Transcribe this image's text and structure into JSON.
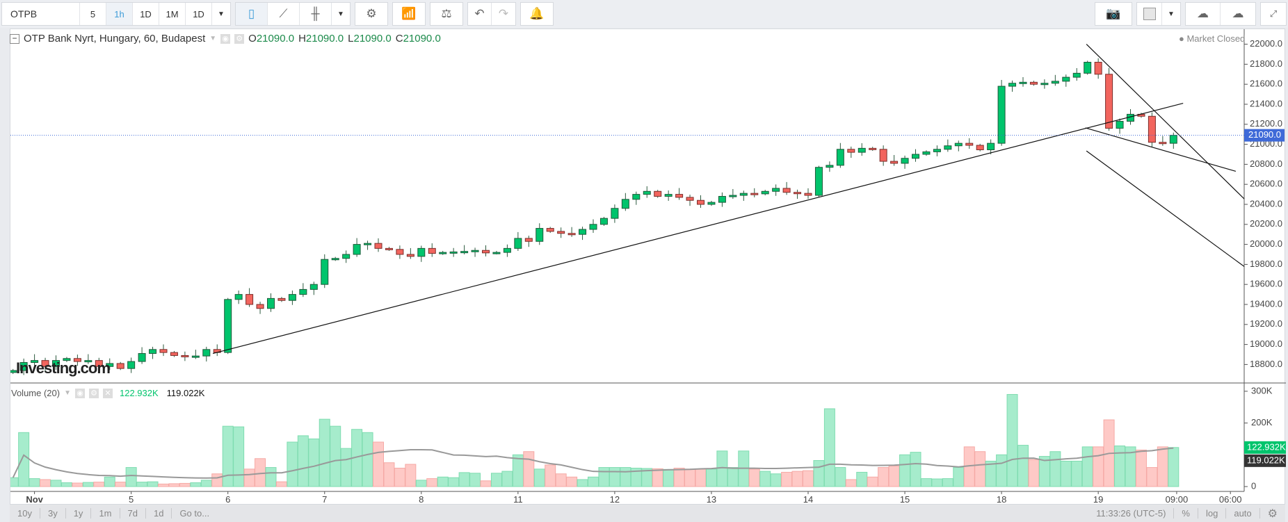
{
  "toolbar": {
    "symbol": "OTPB",
    "intervals": [
      "5",
      "1h",
      "1D",
      "1M",
      "1D"
    ],
    "active_interval": "1h"
  },
  "legend": {
    "title": "OTP Bank Nyrt, Hungary, 60, Budapest",
    "o": "21090.0",
    "h": "21090.0",
    "l": "21090.0",
    "c": "21090.0",
    "market_status": "Market Closed"
  },
  "volume_legend": {
    "label": "Volume (20)",
    "v1": "122.932K",
    "v2": "119.022K"
  },
  "watermark": "Investing.com",
  "bottombar": {
    "ranges": [
      "10y",
      "3y",
      "1y",
      "1m",
      "7d",
      "1d",
      "Go to..."
    ],
    "time": "11:33:26 (UTC-5)",
    "percent": "%",
    "log": "log",
    "auto": "auto"
  },
  "colors": {
    "up": "#00c46c",
    "down": "#f2655e",
    "up_vol": "#a6eccc",
    "down_vol": "#fec9c6",
    "last_price": "#3f6ad8"
  },
  "chart_data": {
    "type": "candlestick",
    "title": "OTP Bank Nyrt, Hungary, 60, Budapest",
    "last_price": 21090,
    "last_price_label": "21090.0",
    "price_ticks": [
      18800,
      19000,
      19200,
      19400,
      19600,
      19800,
      20000,
      20200,
      20400,
      20600,
      20800,
      21000,
      21200,
      21400,
      21600,
      21800,
      22000
    ],
    "volume_ticks": [
      {
        "v": 0,
        "label": "0"
      },
      {
        "v": 200,
        "label": "200K"
      },
      {
        "v": 300,
        "label": "300K"
      }
    ],
    "volume_badges": [
      {
        "v": 122.932,
        "label": "122.932K",
        "color": "#00c46c"
      },
      {
        "v": 119.022,
        "label": "119.022K",
        "color": "#333333"
      }
    ],
    "x_labels": [
      {
        "i": 2,
        "label": "Nov"
      },
      {
        "i": 11,
        "label": "5"
      },
      {
        "i": 20,
        "label": "6"
      },
      {
        "i": 29,
        "label": "7"
      },
      {
        "i": 38,
        "label": "8"
      },
      {
        "i": 47,
        "label": "11"
      },
      {
        "i": 56,
        "label": "12"
      },
      {
        "i": 65,
        "label": "13"
      },
      {
        "i": 74,
        "label": "14"
      },
      {
        "i": 83,
        "label": "15"
      },
      {
        "i": 92,
        "label": "18"
      },
      {
        "i": 101,
        "label": "19"
      },
      {
        "i": 108.3,
        "label": "09:00"
      },
      {
        "i": 113.3,
        "label": "06:00"
      }
    ],
    "closes": [
      18740,
      18820,
      18840,
      18780,
      18840,
      18860,
      18830,
      18840,
      18780,
      18810,
      18760,
      18830,
      18910,
      18950,
      18920,
      18890,
      18880,
      18885,
      18950,
      18920,
      19450,
      19500,
      19400,
      19360,
      19460,
      19440,
      19500,
      19550,
      19600,
      19850,
      19860,
      19900,
      20000,
      20010,
      19960,
      19950,
      19900,
      19880,
      19960,
      19910,
      19920,
      19925,
      19930,
      19940,
      19915,
      19920,
      19960,
      20060,
      20030,
      20160,
      20130,
      20110,
      20100,
      20150,
      20200,
      20260,
      20360,
      20450,
      20500,
      20530,
      20480,
      20500,
      20470,
      20440,
      20400,
      20420,
      20480,
      20490,
      20510,
      20505,
      20530,
      20560,
      20520,
      20510,
      20490,
      20770,
      20790,
      20950,
      20920,
      20960,
      20950,
      20830,
      20810,
      20860,
      20900,
      20925,
      20950,
      20985,
      21010,
      20990,
      20945,
      21010,
      21580,
      21610,
      21620,
      21600,
      21610,
      21630,
      21670,
      21710,
      21820,
      21700,
      21160,
      21230,
      21300,
      21280,
      21020,
      21010,
      21090
    ],
    "volume_k": [
      28,
      170,
      25,
      22,
      20,
      12,
      11,
      13,
      14,
      30,
      14,
      60,
      14,
      15,
      8,
      9,
      10,
      12,
      20,
      40,
      190,
      188,
      55,
      88,
      60,
      15,
      140,
      160,
      150,
      212,
      190,
      120,
      180,
      170,
      140,
      75,
      58,
      70,
      20,
      25,
      30,
      28,
      44,
      42,
      18,
      42,
      48,
      100,
      110,
      55,
      68,
      40,
      30,
      22,
      30,
      60,
      60,
      60,
      58,
      57,
      56,
      54,
      58,
      55,
      55,
      55,
      112,
      60,
      112,
      55,
      48,
      40,
      45,
      48,
      50,
      82,
      245,
      60,
      22,
      45,
      30,
      60,
      65,
      100,
      108,
      25,
      24,
      25,
      60,
      125,
      110,
      80,
      100,
      290,
      130,
      85,
      95,
      110,
      80,
      80,
      125,
      125,
      210,
      128,
      125,
      115,
      60,
      125,
      123
    ],
    "ma_period": 20,
    "trend_lines": [
      {
        "from": [
          18.6,
          18910
        ],
        "to": [
          108.9,
          21410
        ]
      },
      {
        "from": [
          99.9,
          22000
        ],
        "to": [
          114.7,
          20443
        ]
      },
      {
        "from": [
          99.9,
          20934
        ],
        "to": [
          114.7,
          19770
        ]
      },
      {
        "from": [
          99.8,
          21164
        ],
        "to": [
          113.8,
          20730
        ]
      }
    ]
  }
}
